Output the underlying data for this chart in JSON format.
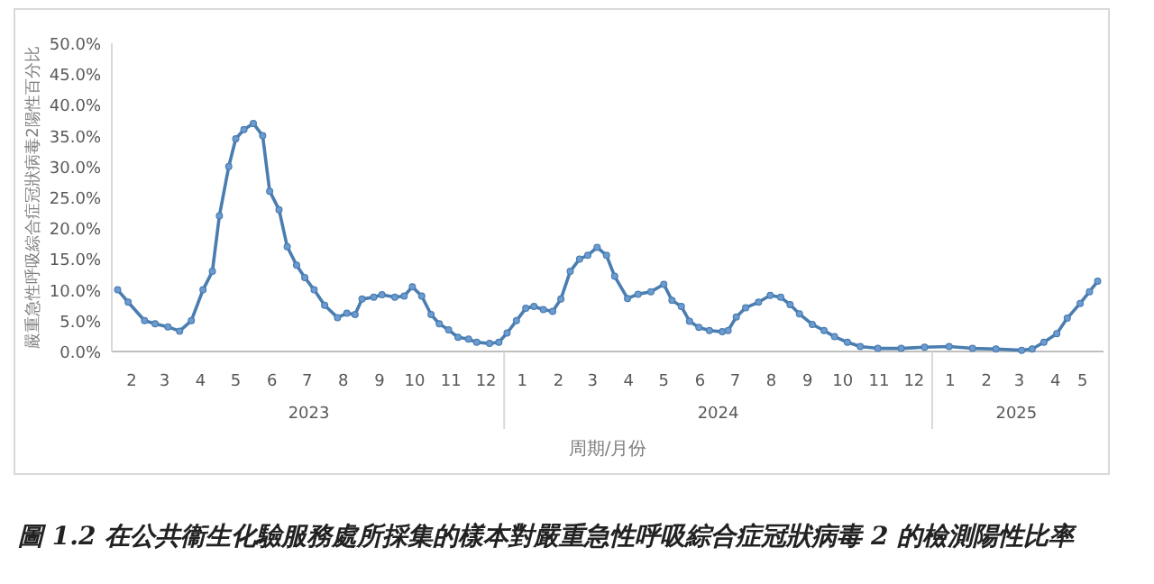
{
  "chart_data": {
    "type": "line",
    "title": "圖 1.2 在公共衞生化驗服務處所採集的樣本對嚴重急性呼吸綜合症冠狀病毒 2 的檢測陽性比率",
    "xlabel": "周期/月份",
    "ylabel": "嚴重急性呼吸綜合症冠狀病毒2陽性百分比",
    "annotations": [
      "2023",
      "2024",
      "2025"
    ],
    "marker": "circle",
    "line_style": "solid",
    "xlim": [
      "2023-01-29",
      "2025-05-26"
    ],
    "xticks": [
      {
        "value": "2023-02-15",
        "label": "2"
      },
      {
        "value": "2023-03-15",
        "label": "3"
      },
      {
        "value": "2023-04-15",
        "label": "4"
      },
      {
        "value": "2023-05-15",
        "label": "5"
      },
      {
        "value": "2023-06-15",
        "label": "6"
      },
      {
        "value": "2023-07-15",
        "label": "7"
      },
      {
        "value": "2023-08-15",
        "label": "8"
      },
      {
        "value": "2023-09-15",
        "label": "9"
      },
      {
        "value": "2023-10-15",
        "label": "10"
      },
      {
        "value": "2023-11-15",
        "label": "11"
      },
      {
        "value": "2023-12-15",
        "label": "12"
      },
      {
        "value": "2024-01-15",
        "label": "1"
      },
      {
        "value": "2024-02-15",
        "label": "2"
      },
      {
        "value": "2024-03-15",
        "label": "3"
      },
      {
        "value": "2024-04-15",
        "label": "4"
      },
      {
        "value": "2024-05-15",
        "label": "5"
      },
      {
        "value": "2024-06-15",
        "label": "6"
      },
      {
        "value": "2024-07-15",
        "label": "7"
      },
      {
        "value": "2024-08-15",
        "label": "8"
      },
      {
        "value": "2024-09-15",
        "label": "9"
      },
      {
        "value": "2024-10-15",
        "label": "10"
      },
      {
        "value": "2024-11-15",
        "label": "11"
      },
      {
        "value": "2024-12-15",
        "label": "12"
      },
      {
        "value": "2025-01-15",
        "label": "1"
      },
      {
        "value": "2025-02-15",
        "label": "2"
      },
      {
        "value": "2025-03-15",
        "label": "3"
      },
      {
        "value": "2025-04-15",
        "label": "4"
      },
      {
        "value": "2025-05-08",
        "label": "5"
      }
    ],
    "ylim": [
      0,
      50
    ],
    "yticks": [
      {
        "value": 0,
        "label": "0.0%"
      },
      {
        "value": 5,
        "label": "5.0%"
      },
      {
        "value": 10,
        "label": "10.0%"
      },
      {
        "value": 15,
        "label": "15.0%"
      },
      {
        "value": 20,
        "label": "20.0%"
      },
      {
        "value": 25,
        "label": "25.0%"
      },
      {
        "value": 30,
        "label": "30.0%"
      },
      {
        "value": 35,
        "label": "35.0%"
      },
      {
        "value": 40,
        "label": "40.0%"
      },
      {
        "value": 45,
        "label": "45.0%"
      },
      {
        "value": 50,
        "label": "50.0%"
      }
    ],
    "series": [
      {
        "color": "#4a7db0",
        "x": [
          "2023-02-03",
          "2023-02-12",
          "2023-02-26",
          "2023-03-07",
          "2023-03-18",
          "2023-03-28",
          "2023-04-07",
          "2023-04-17",
          "2023-04-25",
          "2023-05-01",
          "2023-05-09",
          "2023-05-15",
          "2023-05-22",
          "2023-05-30",
          "2023-06-07",
          "2023-06-13",
          "2023-06-21",
          "2023-06-28",
          "2023-07-06",
          "2023-07-13",
          "2023-07-21",
          "2023-07-30",
          "2023-08-10",
          "2023-08-18",
          "2023-08-25",
          "2023-08-31",
          "2023-09-10",
          "2023-09-17",
          "2023-09-28",
          "2023-10-06",
          "2023-10-13",
          "2023-10-21",
          "2023-10-29",
          "2023-11-05",
          "2023-11-13",
          "2023-11-21",
          "2023-11-30",
          "2023-12-07",
          "2023-12-18",
          "2023-12-26",
          "2024-01-02",
          "2024-01-10",
          "2024-01-18",
          "2024-01-25",
          "2024-02-02",
          "2024-02-10",
          "2024-02-17",
          "2024-02-25",
          "2024-03-04",
          "2024-03-11",
          "2024-03-19",
          "2024-03-27",
          "2024-04-03",
          "2024-04-14",
          "2024-04-23",
          "2024-05-04",
          "2024-05-15",
          "2024-05-22",
          "2024-05-30",
          "2024-06-06",
          "2024-06-14",
          "2024-06-23",
          "2024-07-04",
          "2024-07-09",
          "2024-07-16",
          "2024-07-24",
          "2024-08-04",
          "2024-08-14",
          "2024-08-23",
          "2024-08-31",
          "2024-09-08",
          "2024-09-19",
          "2024-09-29",
          "2024-10-08",
          "2024-10-19",
          "2024-10-30",
          "2024-11-14",
          "2024-12-04",
          "2024-12-24",
          "2025-01-14",
          "2025-02-03",
          "2025-02-23",
          "2025-03-17",
          "2025-03-26",
          "2025-04-05",
          "2025-04-16",
          "2025-04-25",
          "2025-05-06",
          "2025-05-14",
          "2025-05-21"
        ],
        "values": [
          10,
          8,
          5,
          4.5,
          4,
          3.3,
          5,
          10,
          13,
          22,
          30,
          34.5,
          36,
          37,
          35,
          26,
          23,
          17,
          14,
          12,
          10,
          7.5,
          5.5,
          6.2,
          6,
          8.5,
          8.8,
          9.2,
          8.8,
          9,
          10.5,
          9,
          6,
          4.5,
          3.5,
          2.3,
          2,
          1.5,
          1.3,
          1.5,
          3,
          5,
          7,
          7.3,
          6.8,
          6.5,
          8.5,
          13,
          15,
          15.6,
          16.9,
          15.6,
          12.2,
          8.6,
          9.3,
          9.7,
          10.9,
          8.3,
          7.3,
          4.9,
          3.9,
          3.4,
          3.2,
          3.4,
          5.6,
          7.1,
          8,
          9.1,
          8.8,
          7.6,
          6.1,
          4.4,
          3.4,
          2.4,
          1.5,
          0.8,
          0.5,
          0.5,
          0.7,
          0.8,
          0.5,
          0.4,
          0.2,
          0.4,
          1.5,
          2.9,
          5.4,
          7.8,
          9.7,
          11.4
        ]
      }
    ]
  }
}
